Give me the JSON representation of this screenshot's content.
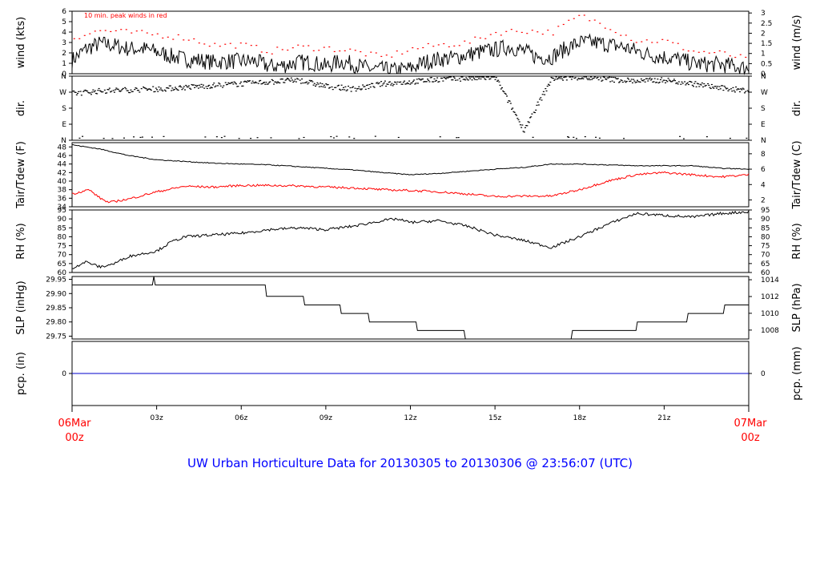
{
  "chart_data": [
    {
      "type": "line",
      "panel": "wind",
      "annotation": "10 min. peak winds in red",
      "ylabel_left": "wind (kts)",
      "ylabel_right": "wind (m/s)",
      "ylim": [
        0,
        6
      ],
      "left_ticks": [
        "0",
        "1",
        "2",
        "3",
        "4",
        "5",
        "6"
      ],
      "right_ticks": [
        {
          "v": 0,
          "label": "0"
        },
        {
          "v": 0.5,
          "label": "0.5"
        },
        {
          "v": 1,
          "label": "1"
        },
        {
          "v": 1.5,
          "label": "1.5"
        },
        {
          "v": 2,
          "label": "2"
        },
        {
          "v": 2.5,
          "label": "2.5"
        },
        {
          "v": 3,
          "label": "3"
        }
      ],
      "series": [
        {
          "values_kts": [
            [
              0,
              1.3
            ],
            [
              0.5,
              2.4
            ],
            [
              1,
              2.9
            ],
            [
              1.5,
              2.7
            ],
            [
              2,
              2.4
            ],
            [
              2.5,
              2.4
            ],
            [
              3,
              2.1
            ],
            [
              3.5,
              1.7
            ],
            [
              4,
              1.4
            ],
            [
              4.5,
              1.3
            ],
            [
              5,
              1.1
            ],
            [
              5.5,
              1.2
            ],
            [
              6,
              1.2
            ],
            [
              6.5,
              1.2
            ],
            [
              7,
              0.7
            ],
            [
              7.5,
              0.8
            ],
            [
              8,
              1.1
            ],
            [
              8.5,
              1.1
            ],
            [
              9,
              0.7
            ],
            [
              9.5,
              1.2
            ],
            [
              10,
              0.9
            ],
            [
              10.5,
              0.5
            ],
            [
              11,
              0.4
            ],
            [
              11.5,
              0.3
            ],
            [
              12,
              0.5
            ],
            [
              12.5,
              1.1
            ],
            [
              13,
              1.4
            ],
            [
              13.5,
              1.5
            ],
            [
              14,
              1.8
            ],
            [
              14.5,
              2.1
            ],
            [
              15,
              2.3
            ],
            [
              15.5,
              2.6
            ],
            [
              16,
              2.2
            ],
            [
              16.5,
              1.6
            ],
            [
              17,
              1.6
            ],
            [
              17.5,
              2.4
            ],
            [
              18,
              3.0
            ],
            [
              18.5,
              3.0
            ],
            [
              19,
              2.8
            ],
            [
              19.5,
              2.6
            ],
            [
              20,
              2.2
            ],
            [
              20.5,
              1.8
            ],
            [
              21,
              1.6
            ],
            [
              21.5,
              1.4
            ],
            [
              22,
              1.0
            ],
            [
              22.5,
              0.9
            ],
            [
              23,
              0.9
            ],
            [
              23.5,
              0.7
            ],
            [
              24,
              0.5
            ]
          ]
        },
        {
          "color": "#ff0000",
          "values_kts": [
            [
              0,
              3.5
            ],
            [
              1,
              4.2
            ],
            [
              2,
              4.0
            ],
            [
              3,
              3.8
            ],
            [
              4,
              3.5
            ],
            [
              5,
              2.8
            ],
            [
              6,
              2.8
            ],
            [
              7,
              2.2
            ],
            [
              8,
              2.6
            ],
            [
              9,
              2.5
            ],
            [
              10,
              2.2
            ],
            [
              11,
              1.6
            ],
            [
              12,
              2.4
            ],
            [
              13,
              2.8
            ],
            [
              14,
              3.0
            ],
            [
              15,
              4.0
            ],
            [
              16,
              4.2
            ],
            [
              17,
              4.0
            ],
            [
              18,
              5.6
            ],
            [
              19,
              4.6
            ],
            [
              20,
              3.2
            ],
            [
              21,
              3.2
            ],
            [
              22,
              2.2
            ],
            [
              23,
              2.0
            ],
            [
              24,
              1.4
            ]
          ]
        }
      ]
    },
    {
      "type": "scatter",
      "panel": "direction",
      "ylabel_left": "dir.",
      "ylabel_right": "dir.",
      "ytick_labels": [
        "N",
        "W",
        "S",
        "E",
        "N"
      ],
      "values": [
        [
          0,
          265
        ],
        [
          1,
          280
        ],
        [
          2,
          285
        ],
        [
          3,
          290
        ],
        [
          4,
          300
        ],
        [
          5,
          310
        ],
        [
          6,
          320
        ],
        [
          7,
          330
        ],
        [
          8,
          340
        ],
        [
          9,
          305
        ],
        [
          10,
          290
        ],
        [
          11,
          320
        ],
        [
          12,
          330
        ],
        [
          13,
          345
        ],
        [
          14,
          350
        ],
        [
          15,
          355
        ],
        [
          16,
          60
        ],
        [
          17,
          350
        ],
        [
          18,
          355
        ],
        [
          19,
          345
        ],
        [
          20,
          335
        ],
        [
          21,
          340
        ],
        [
          22,
          320
        ],
        [
          23,
          295
        ],
        [
          24,
          280
        ]
      ]
    },
    {
      "type": "line",
      "panel": "temperature",
      "ylabel_left": "Tair/Tdew (F)",
      "ylabel_right": "Tair/Tdew (C)",
      "ylim": [
        34,
        49
      ],
      "left_ticks": [
        "34",
        "36",
        "38",
        "40",
        "42",
        "44",
        "46",
        "48"
      ],
      "right_ticks": [
        {
          "v": 35.6,
          "label": "2"
        },
        {
          "v": 39.2,
          "label": "4"
        },
        {
          "v": 42.8,
          "label": "6"
        },
        {
          "v": 46.4,
          "label": "8"
        }
      ],
      "series": [
        {
          "name": "Tair",
          "values": [
            [
              0,
              48.5
            ],
            [
              1,
              47.5
            ],
            [
              2,
              46.0
            ],
            [
              3,
              45.0
            ],
            [
              4,
              44.6
            ],
            [
              5,
              44.2
            ],
            [
              6,
              44.0
            ],
            [
              7,
              43.8
            ],
            [
              8,
              43.4
            ],
            [
              9,
              43.0
            ],
            [
              10,
              42.6
            ],
            [
              11,
              42.0
            ],
            [
              12,
              41.5
            ],
            [
              13,
              41.8
            ],
            [
              14,
              42.3
            ],
            [
              15,
              42.8
            ],
            [
              16,
              43.2
            ],
            [
              17,
              44.0
            ],
            [
              18,
              44.0
            ],
            [
              19,
              43.8
            ],
            [
              20,
              43.6
            ],
            [
              21,
              43.6
            ],
            [
              22,
              43.6
            ],
            [
              23,
              43.0
            ],
            [
              24,
              42.8
            ]
          ]
        },
        {
          "name": "Tdew",
          "color": "#ff0000",
          "values": [
            [
              0,
              37.0
            ],
            [
              0.6,
              38.0
            ],
            [
              1,
              36.0
            ],
            [
              1.3,
              35.0
            ],
            [
              2,
              35.8
            ],
            [
              3,
              37.5
            ],
            [
              4,
              38.8
            ],
            [
              5,
              38.6
            ],
            [
              6,
              39.0
            ],
            [
              7,
              39.0
            ],
            [
              8,
              38.9
            ],
            [
              9,
              38.6
            ],
            [
              10,
              38.4
            ],
            [
              11,
              38.0
            ],
            [
              12,
              37.8
            ],
            [
              13,
              37.5
            ],
            [
              14,
              37.0
            ],
            [
              15,
              36.4
            ],
            [
              16,
              36.5
            ],
            [
              17,
              36.5
            ],
            [
              18,
              38.0
            ],
            [
              19,
              40.0
            ],
            [
              20,
              41.5
            ],
            [
              21,
              42.0
            ],
            [
              22,
              41.5
            ],
            [
              23,
              41.0
            ],
            [
              24,
              41.5
            ]
          ]
        }
      ]
    },
    {
      "type": "line",
      "panel": "relative humidity",
      "ylabel_left": "RH (%)",
      "ylabel_right": "RH (%)",
      "ylim": [
        60,
        95
      ],
      "left_ticks": [
        "60",
        "65",
        "70",
        "75",
        "80",
        "85",
        "90",
        "95"
      ],
      "right_ticks": [
        {
          "v": 60,
          "label": "60"
        },
        {
          "v": 65,
          "label": "65"
        },
        {
          "v": 70,
          "label": "70"
        },
        {
          "v": 75,
          "label": "75"
        },
        {
          "v": 80,
          "label": "80"
        },
        {
          "v": 85,
          "label": "85"
        },
        {
          "v": 90,
          "label": "90"
        },
        {
          "v": 95,
          "label": "95"
        }
      ],
      "series": [
        {
          "values": [
            [
              0,
              62.5
            ],
            [
              0.5,
              66
            ],
            [
              1,
              63
            ],
            [
              1.5,
              65
            ],
            [
              2,
              69
            ],
            [
              3,
              72
            ],
            [
              3.5,
              77
            ],
            [
              4,
              80
            ],
            [
              5,
              81
            ],
            [
              6,
              82
            ],
            [
              7,
              84
            ],
            [
              8,
              85
            ],
            [
              9,
              84
            ],
            [
              10,
              86
            ],
            [
              11,
              89
            ],
            [
              11.5,
              90
            ],
            [
              12,
              88
            ],
            [
              13,
              89
            ],
            [
              14,
              86
            ],
            [
              15,
              81
            ],
            [
              16,
              78
            ],
            [
              17,
              74
            ],
            [
              18,
              80
            ],
            [
              19,
              87
            ],
            [
              20,
              93
            ],
            [
              21,
              92
            ],
            [
              22,
              91
            ],
            [
              23,
              93
            ],
            [
              24,
              94
            ]
          ]
        }
      ]
    },
    {
      "type": "line",
      "panel": "sea level pressure",
      "ylabel_left": "SLP (inHg)",
      "ylabel_right": "SLP (hPa)",
      "ylim": [
        29.74,
        29.96
      ],
      "left_ticks": [
        "29.75",
        "29.80",
        "29.85",
        "29.90",
        "29.95"
      ],
      "right_ticks": [
        {
          "v": 29.7714,
          "label": "1008"
        },
        {
          "v": 29.8305,
          "label": "1010"
        },
        {
          "v": 29.8895,
          "label": "1012"
        },
        {
          "v": 29.9486,
          "label": "1014"
        }
      ],
      "series": [
        {
          "values": [
            [
              0,
              29.93
            ],
            [
              2.85,
              29.93
            ],
            [
              2.9,
              29.96
            ],
            [
              2.95,
              29.93
            ],
            [
              6.85,
              29.93
            ],
            [
              6.9,
              29.89
            ],
            [
              8.2,
              29.89
            ],
            [
              8.25,
              29.86
            ],
            [
              9.5,
              29.86
            ],
            [
              9.55,
              29.83
            ],
            [
              10.5,
              29.83
            ],
            [
              10.55,
              29.8
            ],
            [
              12.2,
              29.8
            ],
            [
              12.25,
              29.77
            ],
            [
              13.9,
              29.77
            ],
            [
              13.95,
              29.74
            ],
            [
              17.7,
              29.74
            ],
            [
              17.75,
              29.77
            ],
            [
              20.0,
              29.77
            ],
            [
              20.05,
              29.8
            ],
            [
              21.8,
              29.8
            ],
            [
              21.85,
              29.83
            ],
            [
              23.1,
              29.83
            ],
            [
              23.15,
              29.86
            ],
            [
              24,
              29.86
            ]
          ]
        }
      ]
    },
    {
      "type": "line",
      "panel": "precipitation",
      "ylabel_left": "pcp. (in)",
      "ylabel_right": "pcp. (mm)",
      "left_ticks": [
        "0"
      ],
      "right_ticks": [
        {
          "v": 0,
          "label": "0"
        }
      ],
      "series": [
        {
          "color": "#0000cc",
          "values": [
            [
              0,
              0
            ],
            [
              24,
              0
            ]
          ]
        }
      ]
    }
  ],
  "x_axis": {
    "start": {
      "day": "06Mar",
      "hour": "00z"
    },
    "end": {
      "day": "07Mar",
      "hour": "00z"
    },
    "ticks": [
      {
        "h": 3,
        "label": "03z"
      },
      {
        "h": 6,
        "label": "06z"
      },
      {
        "h": 9,
        "label": "09z"
      },
      {
        "h": 12,
        "label": "12z"
      },
      {
        "h": 15,
        "label": "15z"
      },
      {
        "h": 18,
        "label": "18z"
      },
      {
        "h": 21,
        "label": "21z"
      }
    ]
  },
  "footer": {
    "title": "UW Urban Horticulture Data for 20130305  to  20130306 @ 23:56:07  (UTC)"
  },
  "colors": {
    "primary": "#000000",
    "secondary": "#ff0000",
    "precip": "#0000cc",
    "title": "#0000ff",
    "date_labels": "#ff0000"
  }
}
